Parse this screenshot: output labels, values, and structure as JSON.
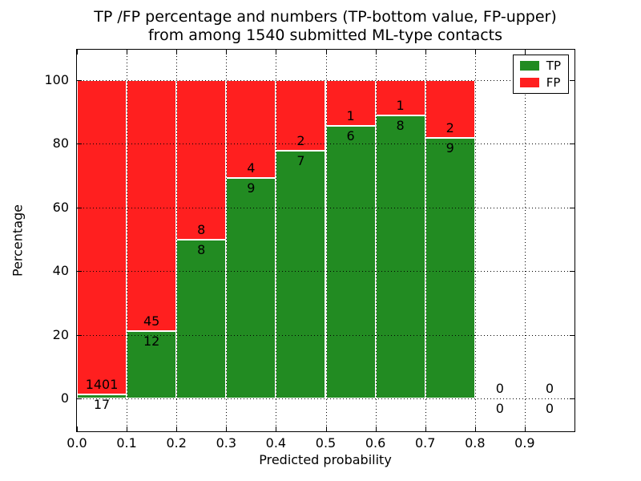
{
  "chart_data": {
    "type": "bar",
    "stacked": true,
    "title_line1": "TP /FP percentage and numbers (TP-bottom value, FP-upper)",
    "title_line2": "from among 1540 submitted ML-type contacts",
    "xlabel": "Predicted probability",
    "ylabel": "Percentage",
    "x_tick_labels": [
      "0.0",
      "0.1",
      "0.2",
      "0.3",
      "0.4",
      "0.5",
      "0.6",
      "0.7",
      "0.8",
      "0.9"
    ],
    "y_tick_labels": [
      "0",
      "20",
      "40",
      "60",
      "80",
      "100"
    ],
    "y_ticks": [
      0,
      20,
      40,
      60,
      80,
      100
    ],
    "xlim": [
      0.0,
      1.0
    ],
    "ylim": [
      -10.3,
      109.6
    ],
    "bar_width": 0.1,
    "bin_edges": [
      0.0,
      0.1,
      0.2,
      0.3,
      0.4,
      0.5,
      0.6,
      0.7,
      0.8,
      0.9,
      1.0
    ],
    "categories": [
      "0.0-0.1",
      "0.1-0.2",
      "0.2-0.3",
      "0.3-0.4",
      "0.4-0.5",
      "0.5-0.6",
      "0.6-0.7",
      "0.7-0.8",
      "0.8-0.9",
      "0.9-1.0"
    ],
    "series": [
      {
        "name": "TP",
        "color": "#228b22",
        "counts": [
          17,
          12,
          8,
          9,
          7,
          6,
          8,
          9,
          0,
          0
        ]
      },
      {
        "name": "FP",
        "color": "#ff1f1f",
        "counts": [
          1401,
          45,
          8,
          4,
          2,
          1,
          1,
          2,
          0,
          0
        ]
      }
    ],
    "tp_percent": [
      1.2,
      21.1,
      50.0,
      69.2,
      77.8,
      85.7,
      88.9,
      81.8,
      0.0,
      0.0
    ],
    "total_contacts": 1540,
    "legend": {
      "position": "upper right",
      "entries": [
        "TP",
        "FP"
      ]
    },
    "grid": "dotted both axes, drawn above bars",
    "bar_edge_color": "#ffffff"
  }
}
